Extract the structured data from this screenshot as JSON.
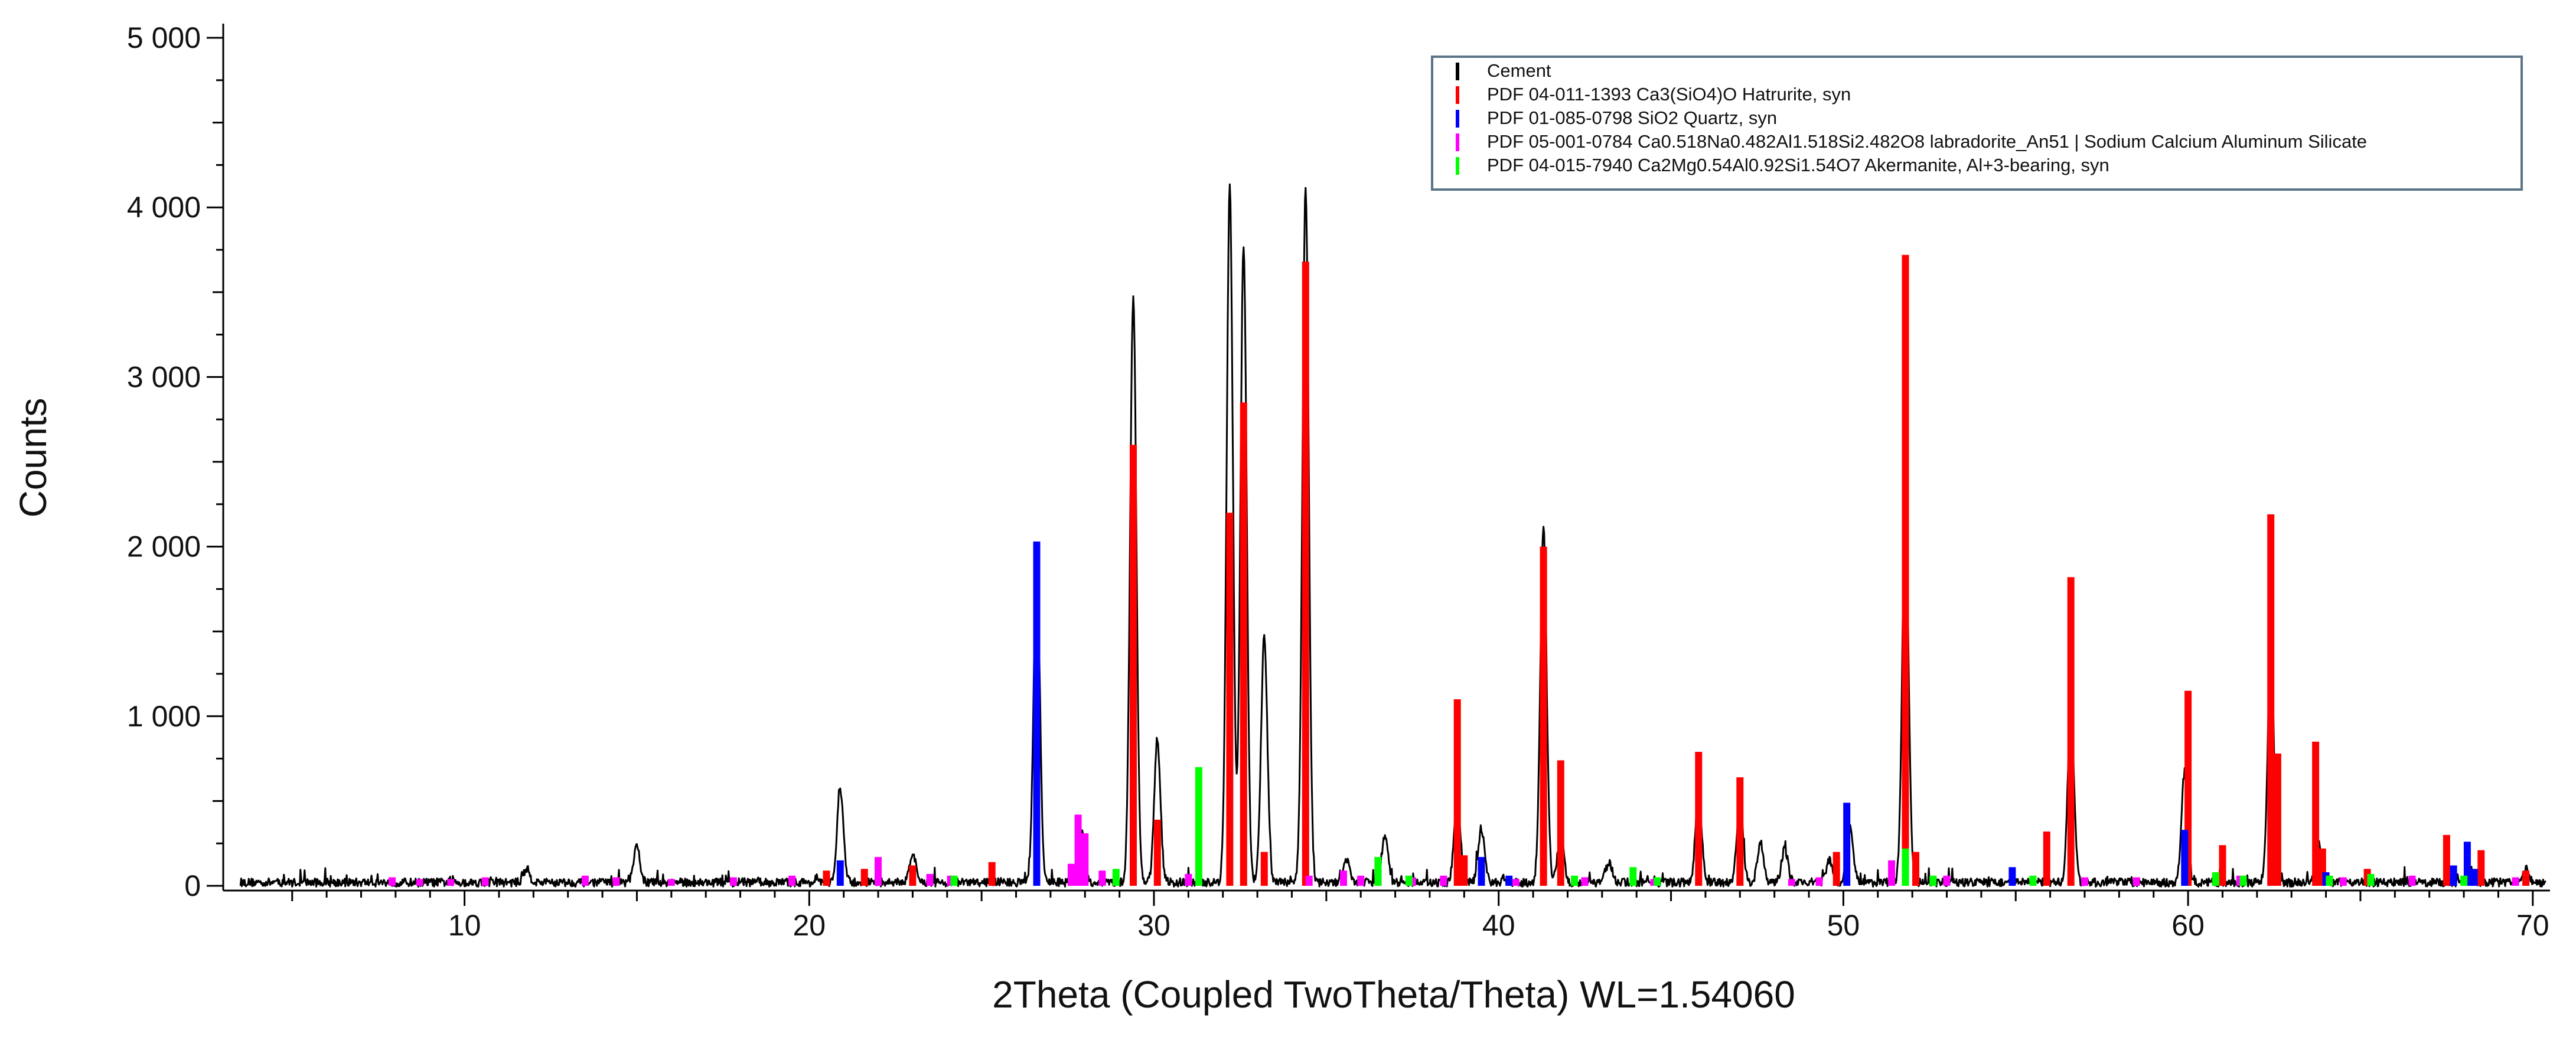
{
  "chart_data": {
    "type": "line",
    "title": "",
    "xlabel": "2Theta (Coupled TwoTheta/Theta) WL=1.54060",
    "ylabel": "Counts",
    "xlim": [
      3,
      70.5
    ],
    "ylim": [
      0,
      5000
    ],
    "x_ticks": [
      10,
      20,
      30,
      40,
      50,
      60,
      70
    ],
    "y_ticks": [
      0,
      1000,
      2000,
      3000,
      4000,
      5000
    ],
    "y_tick_labels": [
      "0",
      "1 000",
      "2 000",
      "3 000",
      "4 000",
      "5 000"
    ],
    "grid": false,
    "legend_position": "top-right",
    "legend": [
      {
        "label": "Cement",
        "color": "#000000"
      },
      {
        "label": "PDF 04-011-1393 Ca3(SiO4)O Hatrurite, syn",
        "color": "#ff0000"
      },
      {
        "label": "PDF 01-085-0798 SiO2 Quartz, syn",
        "color": "#0000ff"
      },
      {
        "label": "PDF 05-001-0784 Ca0.518Na0.482Al1.518Si2.482O8 labradorite_An51 | Sodium Calcium Aluminum Silicate",
        "color": "#ff00ff"
      },
      {
        "label": "PDF 04-015-7940 Ca2Mg0.54Al0.92Si1.54O7 Akermanite, Al+3-bearing, syn",
        "color": "#00ff00"
      }
    ],
    "pattern_peaks": [
      [
        11.8,
        80
      ],
      [
        15.0,
        210
      ],
      [
        20.9,
        550
      ],
      [
        23.0,
        170
      ],
      [
        26.6,
        1900
      ],
      [
        27.9,
        290
      ],
      [
        29.4,
        3450
      ],
      [
        30.1,
        830
      ],
      [
        32.2,
        4100
      ],
      [
        32.6,
        3750
      ],
      [
        33.2,
        1450
      ],
      [
        34.4,
        4100
      ],
      [
        35.6,
        140
      ],
      [
        36.7,
        280
      ],
      [
        38.8,
        480
      ],
      [
        39.5,
        320
      ],
      [
        41.3,
        2100
      ],
      [
        41.8,
        280
      ],
      [
        43.2,
        120
      ],
      [
        45.8,
        520
      ],
      [
        47.0,
        480
      ],
      [
        47.6,
        230
      ],
      [
        48.3,
        200
      ],
      [
        49.6,
        130
      ],
      [
        50.2,
        320
      ],
      [
        51.8,
        2230
      ],
      [
        56.6,
        1030
      ],
      [
        59.9,
        650
      ],
      [
        62.4,
        1370
      ],
      [
        63.8,
        230
      ],
      [
        68.2,
        80
      ],
      [
        69.8,
        80
      ]
    ],
    "series": [
      {
        "name": "PDF 04-011-1393 Ca3(SiO4)O Hatrurite, syn",
        "color": "#ff0000",
        "sticks": [
          [
            20.5,
            90
          ],
          [
            21.6,
            100
          ],
          [
            23.0,
            120
          ],
          [
            25.3,
            140
          ],
          [
            29.4,
            2600
          ],
          [
            30.1,
            390
          ],
          [
            32.2,
            2200
          ],
          [
            32.6,
            2850
          ],
          [
            33.2,
            200
          ],
          [
            34.4,
            3680
          ],
          [
            38.8,
            1100
          ],
          [
            39.0,
            180
          ],
          [
            41.3,
            2000
          ],
          [
            41.8,
            740
          ],
          [
            45.8,
            790
          ],
          [
            47.0,
            640
          ],
          [
            49.8,
            200
          ],
          [
            51.8,
            3720
          ],
          [
            52.1,
            200
          ],
          [
            55.9,
            320
          ],
          [
            56.6,
            1820
          ],
          [
            60.0,
            1150
          ],
          [
            61.0,
            240
          ],
          [
            62.4,
            2190
          ],
          [
            62.6,
            780
          ],
          [
            63.7,
            850
          ],
          [
            63.9,
            220
          ],
          [
            65.2,
            100
          ],
          [
            67.5,
            300
          ],
          [
            68.5,
            210
          ],
          [
            69.8,
            90
          ]
        ]
      },
      {
        "name": "PDF 01-085-0798 SiO2 Quartz, syn",
        "color": "#0000ff",
        "sticks": [
          [
            20.9,
            150
          ],
          [
            26.6,
            2030
          ],
          [
            36.5,
            100
          ],
          [
            39.5,
            170
          ],
          [
            40.3,
            60
          ],
          [
            42.5,
            50
          ],
          [
            50.1,
            490
          ],
          [
            54.9,
            110
          ],
          [
            59.9,
            330
          ],
          [
            64.0,
            80
          ],
          [
            67.7,
            120
          ],
          [
            68.1,
            260
          ],
          [
            68.3,
            100
          ]
        ]
      },
      {
        "name": "PDF 05-001-0784 Ca0.518Na0.482Al1.518Si2.482O8 labradorite_An51 | Sodium Calcium Aluminum Silicate",
        "color": "#ff00ff",
        "sticks": [
          [
            7.9,
            50
          ],
          [
            8.7,
            40
          ],
          [
            9.6,
            40
          ],
          [
            10.6,
            50
          ],
          [
            13.5,
            60
          ],
          [
            14.4,
            50
          ],
          [
            16.0,
            40
          ],
          [
            17.8,
            50
          ],
          [
            19.5,
            60
          ],
          [
            22.0,
            170
          ],
          [
            23.5,
            70
          ],
          [
            24.1,
            60
          ],
          [
            27.6,
            130
          ],
          [
            27.8,
            420
          ],
          [
            28.0,
            310
          ],
          [
            28.5,
            90
          ],
          [
            31.0,
            70
          ],
          [
            34.5,
            60
          ],
          [
            35.5,
            90
          ],
          [
            36.0,
            60
          ],
          [
            37.5,
            50
          ],
          [
            38.4,
            60
          ],
          [
            40.5,
            40
          ],
          [
            42.5,
            50
          ],
          [
            44.5,
            40
          ],
          [
            48.5,
            40
          ],
          [
            49.3,
            50
          ],
          [
            51.4,
            150
          ],
          [
            53.0,
            60
          ],
          [
            57.0,
            50
          ],
          [
            58.5,
            50
          ],
          [
            61.5,
            60
          ],
          [
            64.5,
            50
          ],
          [
            66.5,
            60
          ],
          [
            69.5,
            50
          ]
        ]
      },
      {
        "name": "PDF 04-015-7940 Ca2Mg0.54Al0.92Si1.54O7 Akermanite, Al+3-bearing, syn",
        "color": "#00ff00",
        "sticks": [
          [
            24.2,
            60
          ],
          [
            28.9,
            100
          ],
          [
            31.3,
            700
          ],
          [
            36.5,
            170
          ],
          [
            37.4,
            60
          ],
          [
            42.2,
            60
          ],
          [
            43.9,
            110
          ],
          [
            44.6,
            50
          ],
          [
            51.8,
            220
          ],
          [
            52.6,
            60
          ],
          [
            55.5,
            60
          ],
          [
            60.8,
            80
          ],
          [
            61.6,
            60
          ],
          [
            64.1,
            60
          ],
          [
            65.3,
            70
          ],
          [
            68.0,
            60
          ]
        ]
      }
    ]
  }
}
